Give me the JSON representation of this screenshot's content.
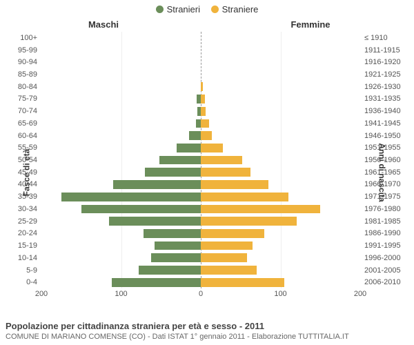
{
  "legend": {
    "male": {
      "label": "Stranieri",
      "color": "#6b8e5a"
    },
    "female": {
      "label": "Straniere",
      "color": "#f0b33c"
    }
  },
  "headers": {
    "left": "Maschi",
    "right": "Femmine"
  },
  "axis_titles": {
    "left": "Fasce di età",
    "right": "Anni di nascita"
  },
  "chart": {
    "type": "population-pyramid",
    "x_max": 200,
    "x_ticks": [
      200,
      100,
      0,
      100,
      200
    ],
    "background_color": "#ffffff",
    "grid_color": "#eeeeee",
    "center_axis_color": "#999999",
    "bar_height_pct": 72,
    "male_color": "#6b8e5a",
    "female_color": "#f0b33c",
    "label_fontsize": 11,
    "tick_fontsize": 11,
    "rows": [
      {
        "age": "100+",
        "birth": "≤ 1910",
        "male": 0,
        "female": 0
      },
      {
        "age": "95-99",
        "birth": "1911-1915",
        "male": 0,
        "female": 0
      },
      {
        "age": "90-94",
        "birth": "1916-1920",
        "male": 0,
        "female": 0
      },
      {
        "age": "85-89",
        "birth": "1921-1925",
        "male": 0,
        "female": 0
      },
      {
        "age": "80-84",
        "birth": "1926-1930",
        "male": 0,
        "female": 3
      },
      {
        "age": "75-79",
        "birth": "1931-1935",
        "male": 5,
        "female": 5
      },
      {
        "age": "70-74",
        "birth": "1936-1940",
        "male": 4,
        "female": 6
      },
      {
        "age": "65-69",
        "birth": "1941-1945",
        "male": 6,
        "female": 10
      },
      {
        "age": "60-64",
        "birth": "1946-1950",
        "male": 15,
        "female": 14
      },
      {
        "age": "55-59",
        "birth": "1951-1955",
        "male": 30,
        "female": 28
      },
      {
        "age": "50-54",
        "birth": "1956-1960",
        "male": 52,
        "female": 52
      },
      {
        "age": "45-49",
        "birth": "1961-1965",
        "male": 70,
        "female": 62
      },
      {
        "age": "40-44",
        "birth": "1966-1970",
        "male": 110,
        "female": 85
      },
      {
        "age": "35-39",
        "birth": "1971-1975",
        "male": 175,
        "female": 110
      },
      {
        "age": "30-34",
        "birth": "1976-1980",
        "male": 150,
        "female": 150
      },
      {
        "age": "25-29",
        "birth": "1981-1985",
        "male": 115,
        "female": 120
      },
      {
        "age": "20-24",
        "birth": "1986-1990",
        "male": 72,
        "female": 80
      },
      {
        "age": "15-19",
        "birth": "1991-1995",
        "male": 58,
        "female": 65
      },
      {
        "age": "10-14",
        "birth": "1996-2000",
        "male": 62,
        "female": 58
      },
      {
        "age": "5-9",
        "birth": "2001-2005",
        "male": 78,
        "female": 70
      },
      {
        "age": "0-4",
        "birth": "2006-2010",
        "male": 112,
        "female": 105
      }
    ]
  },
  "caption": {
    "title": "Popolazione per cittadinanza straniera per età e sesso - 2011",
    "sub": "COMUNE DI MARIANO COMENSE (CO) - Dati ISTAT 1° gennaio 2011 - Elaborazione TUTTITALIA.IT"
  }
}
